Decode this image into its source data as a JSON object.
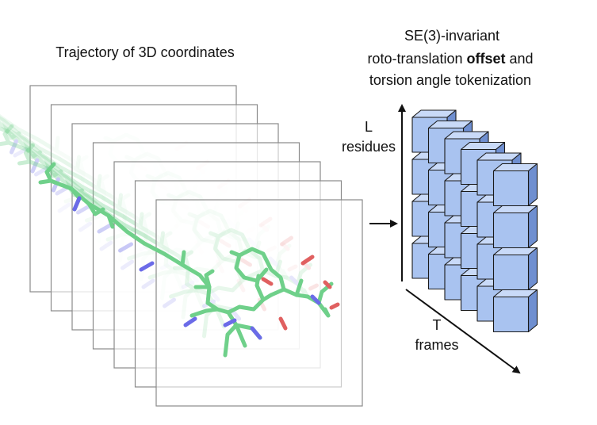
{
  "left_title": "Trajectory of 3D coordinates",
  "right_title": {
    "line1": "SE(3)-invariant",
    "line2_pre": "roto-translation ",
    "line2_bold": "offset",
    "line2_post": " and",
    "line3": "torsion angle tokenization"
  },
  "axis_l": {
    "line1": "L",
    "line2": "residues"
  },
  "axis_t": {
    "line1": "T",
    "line2": "frames"
  },
  "colors": {
    "cube_front": "#a9c3f0",
    "cube_top": "#c9daf8",
    "cube_side": "#6f8fd0",
    "cube_edge": "#1a1a1a",
    "molecule_carbon": "#6fd08a",
    "molecule_nitrogen": "#6b6be8",
    "molecule_oxygen": "#e06060",
    "frame_stroke": "#8a8a8a"
  },
  "tensor": {
    "frames": 6,
    "residues": 4
  }
}
